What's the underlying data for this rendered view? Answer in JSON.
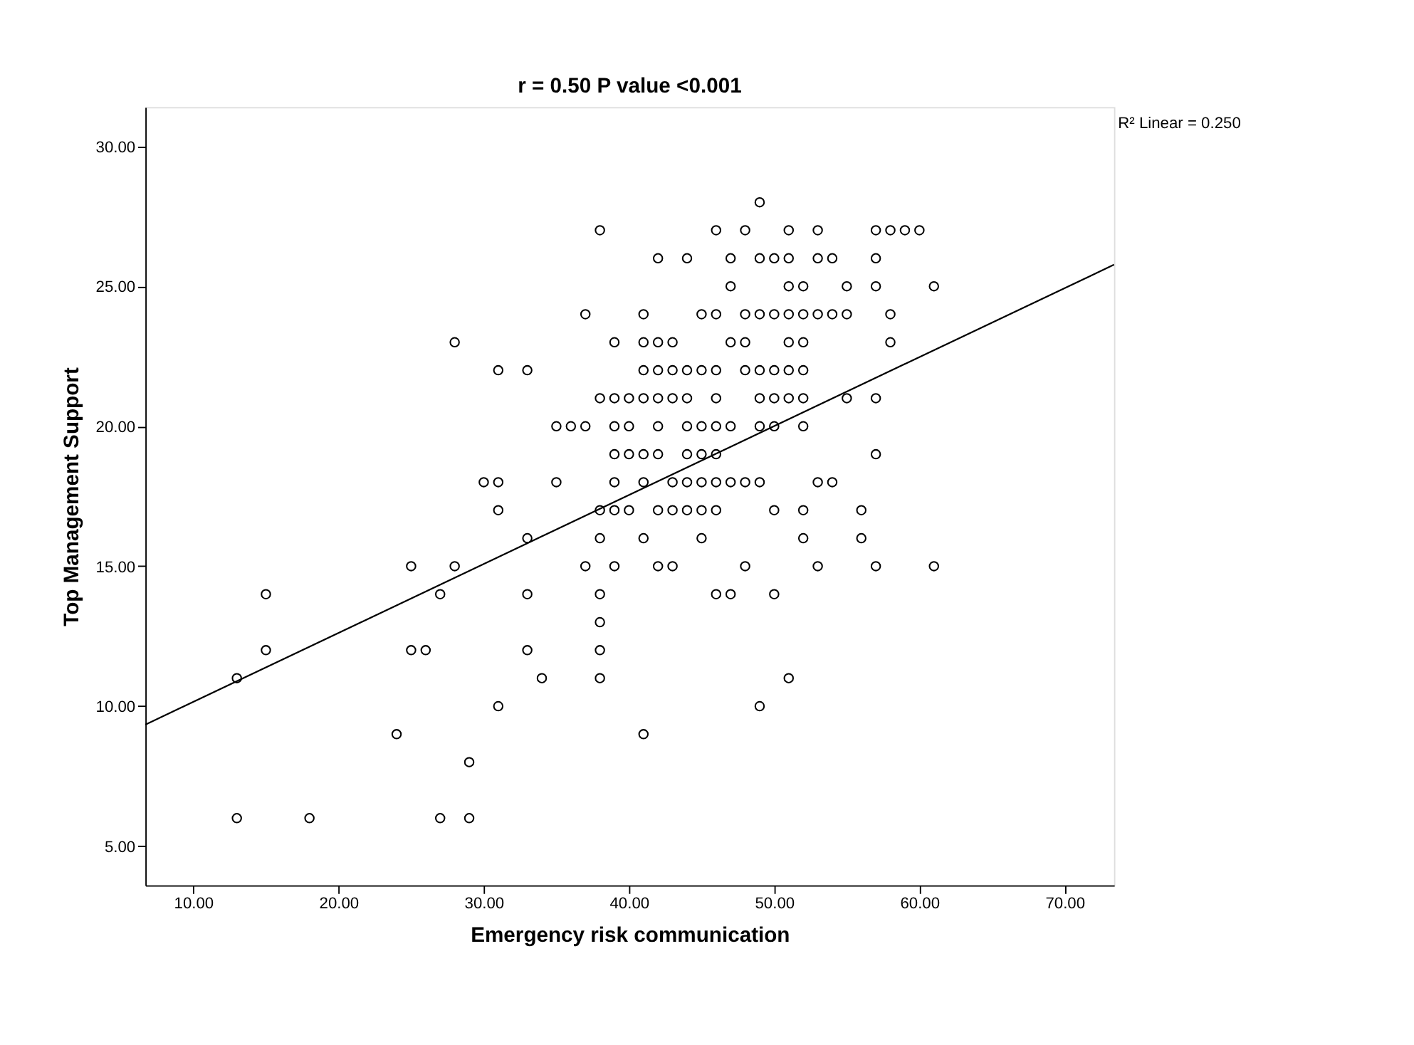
{
  "chart_data": {
    "type": "scatter",
    "title": "r = 0.50    P value <0.001",
    "xlabel": "Emergency risk communication",
    "ylabel": "Top Management Support",
    "annotations": [
      "R² Linear = 0.250"
    ],
    "xlim": [
      6.7,
      73.4
    ],
    "ylim": [
      3.6,
      31.4
    ],
    "xticks": [
      {
        "value": 10,
        "label": "10.00"
      },
      {
        "value": 20,
        "label": "20.00"
      },
      {
        "value": 30,
        "label": "30.00"
      },
      {
        "value": 40,
        "label": "40.00"
      },
      {
        "value": 50,
        "label": "50.00"
      },
      {
        "value": 60,
        "label": "60.00"
      },
      {
        "value": 70,
        "label": "70.00"
      }
    ],
    "yticks": [
      {
        "value": 5,
        "label": "5.00"
      },
      {
        "value": 10,
        "label": "10.00"
      },
      {
        "value": 15,
        "label": "15.00"
      },
      {
        "value": 20,
        "label": "20.00"
      },
      {
        "value": 25,
        "label": "25.00"
      },
      {
        "value": 30,
        "label": "30.00"
      }
    ],
    "grid": false,
    "series": [
      {
        "color": "#000000",
        "marker": "circle",
        "x": [
          49,
          38,
          46,
          48,
          51,
          53,
          57,
          58,
          59,
          60,
          42,
          44,
          47,
          49,
          50,
          51,
          53,
          54,
          57,
          47,
          51,
          52,
          55,
          57,
          61,
          37,
          41,
          45,
          46,
          48,
          49,
          50,
          51,
          52,
          53,
          54,
          55,
          58,
          28,
          39,
          41,
          42,
          43,
          47,
          48,
          51,
          52,
          58,
          31,
          33,
          41,
          42,
          43,
          44,
          45,
          46,
          48,
          49,
          50,
          51,
          52,
          38,
          39,
          40,
          41,
          42,
          43,
          44,
          46,
          49,
          50,
          51,
          52,
          55,
          57,
          35,
          36,
          37,
          39,
          40,
          42,
          44,
          45,
          46,
          47,
          49,
          50,
          52,
          39,
          40,
          41,
          42,
          44,
          45,
          46,
          57,
          30,
          31,
          35,
          39,
          41,
          43,
          44,
          45,
          46,
          47,
          48,
          49,
          53,
          54,
          31,
          38,
          39,
          40,
          42,
          43,
          44,
          45,
          46,
          50,
          52,
          56,
          33,
          38,
          41,
          45,
          52,
          56,
          25,
          28,
          37,
          39,
          42,
          43,
          48,
          53,
          57,
          61,
          15,
          27,
          33,
          38,
          46,
          47,
          50,
          38,
          15,
          25,
          26,
          33,
          38,
          13,
          34,
          38,
          51,
          31,
          49,
          24,
          41,
          29,
          13,
          18,
          27,
          29
        ],
        "values": [
          28,
          27,
          27,
          27,
          27,
          27,
          27,
          27,
          27,
          27,
          26,
          26,
          26,
          26,
          26,
          26,
          26,
          26,
          26,
          25,
          25,
          25,
          25,
          25,
          25,
          24,
          24,
          24,
          24,
          24,
          24,
          24,
          24,
          24,
          24,
          24,
          24,
          24,
          23,
          23,
          23,
          23,
          23,
          23,
          23,
          23,
          23,
          23,
          22,
          22,
          22,
          22,
          22,
          22,
          22,
          22,
          22,
          22,
          22,
          22,
          22,
          21,
          21,
          21,
          21,
          21,
          21,
          21,
          21,
          21,
          21,
          21,
          21,
          21,
          21,
          20,
          20,
          20,
          20,
          20,
          20,
          20,
          20,
          20,
          20,
          20,
          20,
          20,
          19,
          19,
          19,
          19,
          19,
          19,
          19,
          19,
          18,
          18,
          18,
          18,
          18,
          18,
          18,
          18,
          18,
          18,
          18,
          18,
          18,
          18,
          17,
          17,
          17,
          17,
          17,
          17,
          17,
          17,
          17,
          17,
          17,
          17,
          16,
          16,
          16,
          16,
          16,
          16,
          15,
          15,
          15,
          15,
          15,
          15,
          15,
          15,
          15,
          15,
          14,
          14,
          14,
          14,
          14,
          14,
          14,
          13,
          12,
          12,
          12,
          12,
          12,
          11,
          11,
          11,
          11,
          10,
          10,
          9,
          9,
          8,
          6,
          6,
          6,
          6
        ]
      },
      {
        "type": "line",
        "color": "#000000",
        "line_style": "solid",
        "x": [
          6.7,
          73.4
        ],
        "values": [
          9.34,
          25.77
        ]
      }
    ]
  }
}
